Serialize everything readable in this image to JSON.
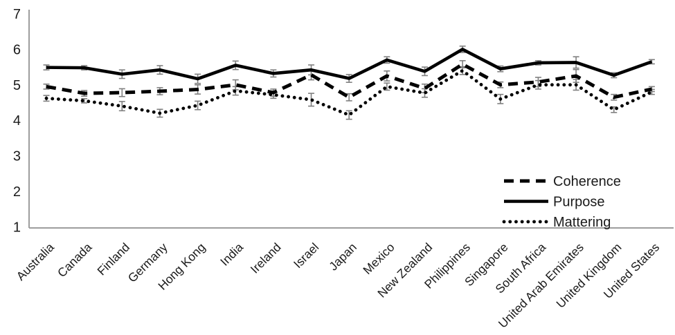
{
  "chart_data": {
    "type": "line",
    "title": "",
    "xlabel": "",
    "ylabel": "",
    "ylim": [
      1,
      7
    ],
    "yticks": [
      1,
      2,
      3,
      4,
      5,
      6,
      7
    ],
    "grid": false,
    "legend_position": "inside-right",
    "error_bars": true,
    "colors": {
      "line": "#000000",
      "error_bar": "#7f7f7f",
      "axis": "#9d9d9d",
      "text": "#1a1a1a",
      "background": "#ffffff"
    },
    "categories": [
      "Australia",
      "Canada",
      "Finland",
      "Germany",
      "Hong Kong",
      "India",
      "Ireland",
      "Israel",
      "Japan",
      "Mexico",
      "New Zealand",
      "Philippines",
      "Singapore",
      "South Africa",
      "United Arab Emirates",
      "United Kingdom",
      "United States"
    ],
    "series": [
      {
        "name": "Coherence",
        "style": "dashed",
        "values": [
          4.95,
          4.76,
          4.78,
          4.82,
          4.87,
          5.0,
          4.78,
          5.28,
          4.65,
          5.25,
          4.9,
          5.58,
          5.0,
          5.08,
          5.25,
          4.65,
          4.88
        ],
        "errors": [
          0.07,
          0.08,
          0.11,
          0.1,
          0.13,
          0.14,
          0.1,
          0.14,
          0.1,
          0.14,
          0.12,
          0.1,
          0.08,
          0.13,
          0.18,
          0.08,
          0.07
        ]
      },
      {
        "name": "Purpose",
        "style": "solid",
        "values": [
          5.49,
          5.48,
          5.3,
          5.42,
          5.17,
          5.55,
          5.32,
          5.42,
          5.18,
          5.7,
          5.38,
          6.0,
          5.45,
          5.62,
          5.63,
          5.27,
          5.65
        ],
        "errors": [
          0.07,
          0.06,
          0.12,
          0.12,
          0.13,
          0.12,
          0.1,
          0.14,
          0.11,
          0.09,
          0.12,
          0.09,
          0.08,
          0.06,
          0.16,
          0.07,
          0.06
        ]
      },
      {
        "name": "Mattering",
        "style": "dotted",
        "values": [
          4.62,
          4.55,
          4.4,
          4.2,
          4.42,
          4.83,
          4.72,
          4.58,
          4.15,
          4.95,
          4.77,
          5.4,
          4.6,
          5.0,
          5.0,
          4.3,
          4.8
        ],
        "errors": [
          0.08,
          0.06,
          0.13,
          0.11,
          0.12,
          0.12,
          0.1,
          0.18,
          0.12,
          0.1,
          0.12,
          0.11,
          0.13,
          0.12,
          0.15,
          0.08,
          0.07
        ]
      }
    ]
  }
}
